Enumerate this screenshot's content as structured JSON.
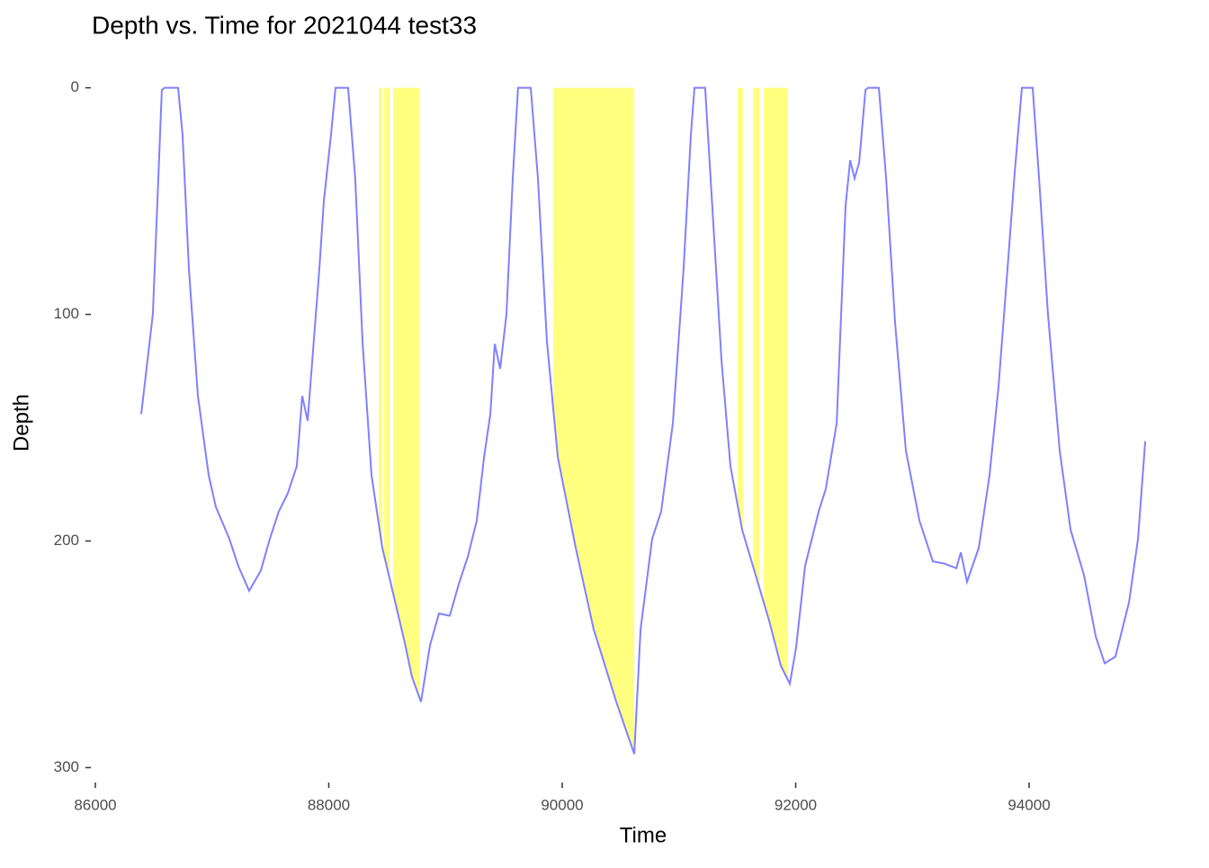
{
  "chart_data": {
    "type": "line",
    "title": "Depth vs. Time for 2021044 test33",
    "x_label": "Time",
    "y_label": "Depth",
    "x": [
      86393,
      86493,
      86540,
      86570,
      86593,
      86709,
      86748,
      86802,
      86879,
      86971,
      87033,
      87148,
      87225,
      87318,
      87418,
      87495,
      87572,
      87649,
      87726,
      87773,
      87819,
      87865,
      87919,
      87958,
      88019,
      88058,
      88166,
      88227,
      88289,
      88366,
      88459,
      88551,
      88651,
      88713,
      88790,
      88867,
      88944,
      89037,
      89114,
      89191,
      89268,
      89330,
      89384,
      89422,
      89468,
      89522,
      89576,
      89622,
      89730,
      89792,
      89869,
      89962,
      90116,
      90270,
      90463,
      90617,
      90671,
      90771,
      90848,
      90948,
      91040,
      91102,
      91133,
      91225,
      91295,
      91364,
      91441,
      91541,
      91657,
      91772,
      91873,
      91950,
      92004,
      92081,
      92197,
      92258,
      92351,
      92428,
      92467,
      92505,
      92544,
      92598,
      92621,
      92713,
      92775,
      92852,
      92944,
      93060,
      93175,
      93276,
      93376,
      93415,
      93468,
      93569,
      93661,
      93738,
      93815,
      93877,
      93938,
      94031,
      94085,
      94162,
      94262,
      94355,
      94470,
      94570,
      94647,
      94740,
      94856,
      94933,
      94995
    ],
    "values": [
      144,
      100,
      40,
      1,
      0,
      0,
      21,
      80,
      136,
      171,
      185,
      199,
      211,
      222,
      213,
      199,
      187,
      179,
      167,
      136,
      147,
      116,
      80,
      50,
      21,
      0,
      0,
      40,
      112,
      171,
      203,
      223,
      245,
      260,
      271,
      246,
      232,
      233,
      219,
      207,
      191,
      163,
      144,
      113,
      124,
      100,
      40,
      0,
      0,
      40,
      112,
      163,
      203,
      239,
      271,
      294,
      239,
      199,
      187,
      148,
      80,
      21,
      0,
      0,
      60,
      120,
      167,
      195,
      215,
      235,
      255,
      263,
      247,
      211,
      187,
      177,
      148,
      52,
      32,
      40,
      33,
      1,
      0,
      0,
      40,
      104,
      160,
      191,
      209,
      210,
      212,
      205,
      218,
      203,
      171,
      132,
      80,
      37,
      0,
      0,
      40,
      100,
      160,
      195,
      215,
      242,
      254,
      251,
      227,
      199,
      156
    ],
    "color": "#8080ff",
    "highlights": [
      [
        88428,
        88459
      ],
      [
        88474,
        88520
      ],
      [
        88551,
        88775
      ],
      [
        89923,
        90617
      ],
      [
        91503,
        91549
      ],
      [
        91634,
        91688
      ],
      [
        91726,
        91934
      ]
    ],
    "highlight_color": "#ffff80",
    "xlim": [
      85954,
      95125
    ],
    "xticks": [
      86000,
      88000,
      90000,
      92000,
      94000
    ],
    "ylim": [
      -5,
      305
    ],
    "yticks": [
      0,
      100,
      200,
      300
    ],
    "y_reversed": true
  }
}
